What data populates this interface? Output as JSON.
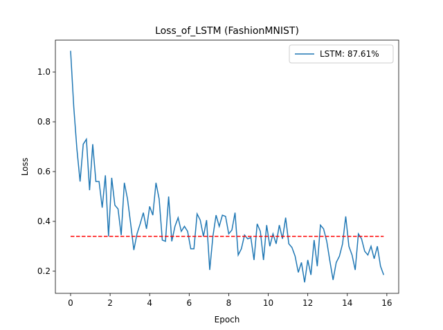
{
  "chart_data": {
    "type": "line",
    "title": "Loss_of_LSTM (FashionMNIST)",
    "x_label": "Epoch",
    "y_label": "Loss",
    "x": [
      0,
      0.16,
      0.32,
      0.48,
      0.64,
      0.8,
      0.96,
      1.12,
      1.28,
      1.44,
      1.6,
      1.76,
      1.92,
      2.08,
      2.24,
      2.4,
      2.56,
      2.72,
      2.88,
      3.04,
      3.2,
      3.36,
      3.52,
      3.68,
      3.84,
      4,
      4.16,
      4.32,
      4.48,
      4.64,
      4.8,
      4.96,
      5.12,
      5.28,
      5.44,
      5.6,
      5.76,
      5.92,
      6.08,
      6.24,
      6.4,
      6.56,
      6.72,
      6.88,
      7.04,
      7.2,
      7.36,
      7.52,
      7.68,
      7.84,
      8,
      8.16,
      8.32,
      8.48,
      8.64,
      8.8,
      8.96,
      9.12,
      9.28,
      9.44,
      9.6,
      9.76,
      9.92,
      10.08,
      10.24,
      10.4,
      10.56,
      10.72,
      10.88,
      11.04,
      11.2,
      11.36,
      11.52,
      11.68,
      11.84,
      12,
      12.16,
      12.32,
      12.48,
      12.64,
      12.8,
      12.96,
      13.12,
      13.28,
      13.44,
      13.6,
      13.76,
      13.92,
      14.08,
      14.24,
      14.4,
      14.56,
      14.72,
      14.88,
      15.04,
      15.2,
      15.36,
      15.52,
      15.68,
      15.84
    ],
    "series": [
      {
        "name": "LSTM: 87.61%",
        "color": "#1f77b4",
        "values": [
          1.085,
          0.86,
          0.69,
          0.56,
          0.71,
          0.73,
          0.525,
          0.71,
          0.56,
          0.56,
          0.455,
          0.585,
          0.34,
          0.575,
          0.465,
          0.45,
          0.345,
          0.555,
          0.49,
          0.39,
          0.285,
          0.35,
          0.39,
          0.435,
          0.37,
          0.46,
          0.425,
          0.555,
          0.49,
          0.325,
          0.32,
          0.5,
          0.32,
          0.38,
          0.415,
          0.36,
          0.38,
          0.36,
          0.29,
          0.29,
          0.43,
          0.405,
          0.34,
          0.405,
          0.205,
          0.34,
          0.425,
          0.38,
          0.425,
          0.42,
          0.35,
          0.365,
          0.435,
          0.265,
          0.29,
          0.345,
          0.33,
          0.335,
          0.245,
          0.39,
          0.36,
          0.245,
          0.385,
          0.3,
          0.35,
          0.31,
          0.385,
          0.33,
          0.415,
          0.31,
          0.295,
          0.26,
          0.195,
          0.235,
          0.155,
          0.245,
          0.185,
          0.325,
          0.22,
          0.385,
          0.37,
          0.32,
          0.24,
          0.165,
          0.235,
          0.26,
          0.31,
          0.42,
          0.3,
          0.265,
          0.205,
          0.35,
          0.33,
          0.28,
          0.265,
          0.3,
          0.25,
          0.3,
          0.22,
          0.185
        ]
      }
    ],
    "reference_line": {
      "y": 0.34,
      "color": "#ff0000",
      "style": "dashed"
    },
    "xlim": [
      -0.77,
      16.6
    ],
    "ylim": [
      0.111,
      1.128
    ],
    "xticks": [
      0,
      2,
      4,
      6,
      8,
      10,
      12,
      14,
      16
    ],
    "yticks": [
      0.2,
      0.4,
      0.6,
      0.8,
      {
        "value": 1,
        "label": "1.0"
      }
    ],
    "legend": "upper right"
  }
}
